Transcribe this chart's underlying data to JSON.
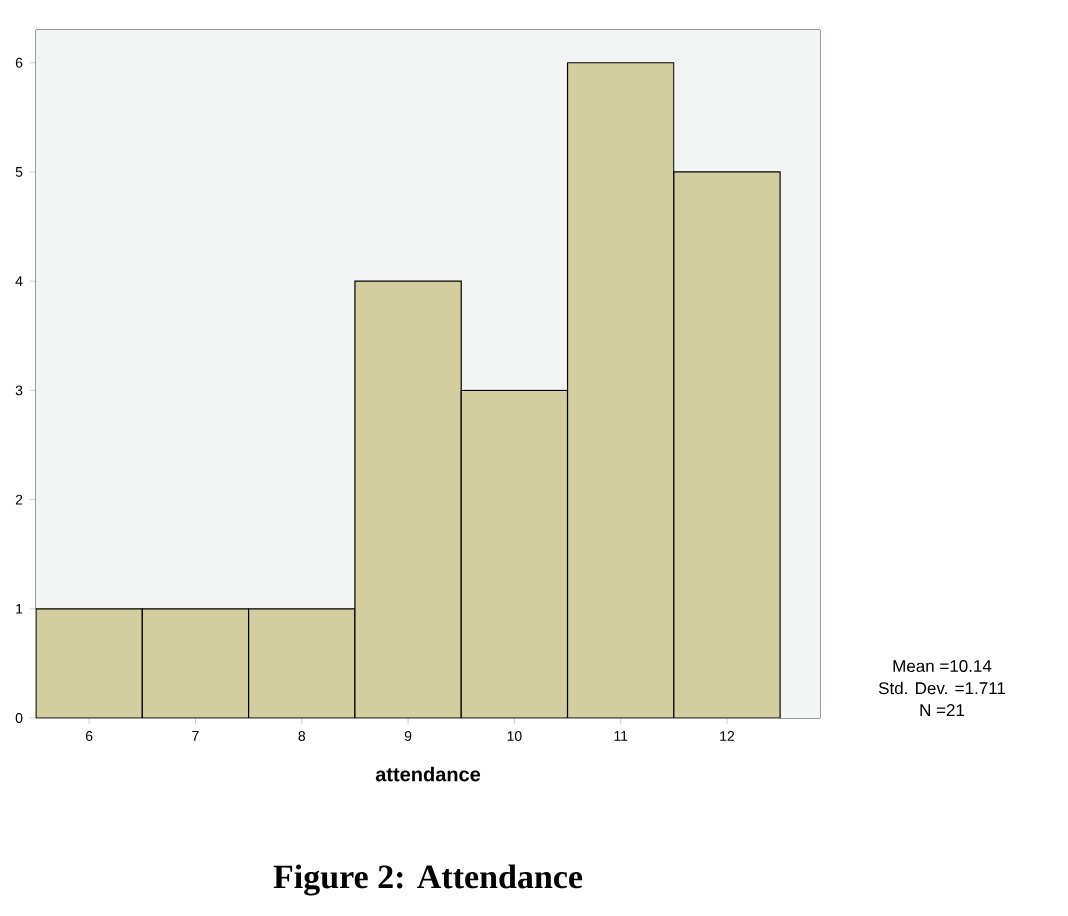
{
  "chart_data": {
    "type": "histogram",
    "title": "Figure 2: Attendance",
    "xlabel": "attendance",
    "bins": [
      5.5,
      6.5,
      7.5,
      8.5,
      9.5,
      10.5,
      11.5,
      12.5
    ],
    "values": [
      1,
      1,
      1,
      4,
      3,
      6,
      5
    ],
    "color": "#d3cea0",
    "xlim": [
      5.5,
      12.875
    ],
    "ylim": [
      0,
      6.3
    ],
    "xticks": [
      6,
      7,
      8,
      9,
      10,
      11,
      12
    ],
    "yticks": [
      0,
      1,
      2,
      3,
      4,
      5,
      6
    ],
    "grid": false,
    "annotations": [
      "Mean =10.14",
      "Std. Dev. =1.711",
      "N =21"
    ]
  }
}
